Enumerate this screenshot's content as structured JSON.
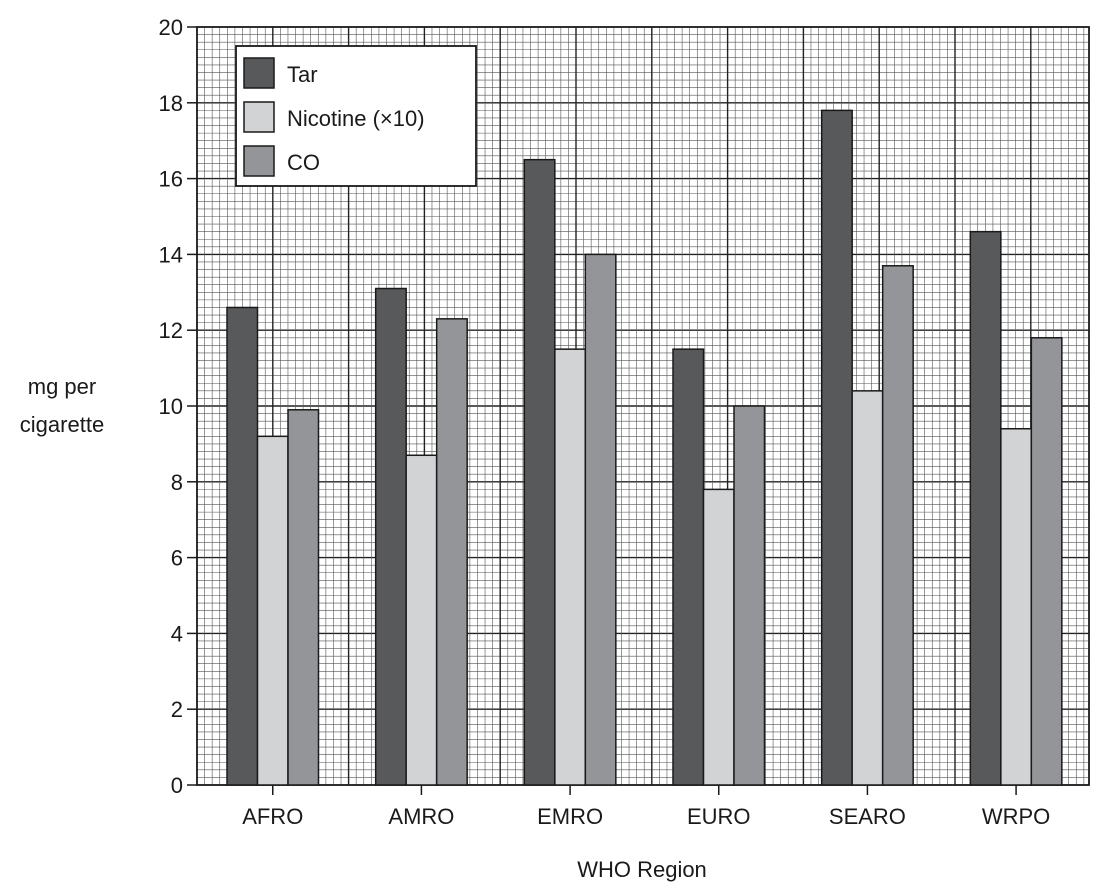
{
  "chart_data": {
    "type": "bar",
    "title": "",
    "xlabel": "WHO Region",
    "ylabel_lines": [
      "mg per",
      "cigarette"
    ],
    "ylim": [
      0,
      20
    ],
    "y_ticks": [
      "0",
      "2",
      "4",
      "6",
      "8",
      "10",
      "12",
      "14",
      "16",
      "18",
      "20"
    ],
    "grid": true,
    "legend_position": "top-left",
    "categories": [
      "AFRO",
      "AMRO",
      "EMRO",
      "EURO",
      "SEARO",
      "WRPO"
    ],
    "series": [
      {
        "name": "Tar",
        "color": "#58595b",
        "values": [
          12.6,
          13.1,
          16.5,
          11.5,
          17.8,
          14.6
        ]
      },
      {
        "name": "Nicotine (×10)",
        "color": "#d1d3d4",
        "values": [
          9.2,
          8.7,
          11.5,
          7.8,
          10.4,
          9.4
        ]
      },
      {
        "name": "CO",
        "color": "#939598",
        "values": [
          9.9,
          12.3,
          14.0,
          10.0,
          13.7,
          11.8
        ]
      }
    ]
  }
}
